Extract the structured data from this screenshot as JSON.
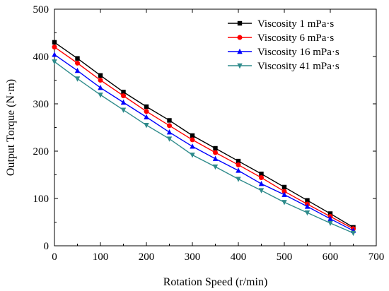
{
  "chart_data": {
    "type": "line",
    "xlabel": "Rotation Speed (r/min)",
    "ylabel": "Output Torque (N·m)",
    "xlim": [
      0,
      700
    ],
    "ylim": [
      0,
      500
    ],
    "xticks": [
      0,
      100,
      200,
      300,
      400,
      500,
      600,
      700
    ],
    "yticks": [
      0,
      100,
      200,
      300,
      400,
      500
    ],
    "grid": false,
    "legend_position": "top-right",
    "x": [
      0,
      50,
      100,
      150,
      200,
      250,
      300,
      350,
      400,
      450,
      500,
      550,
      600,
      650
    ],
    "series": [
      {
        "name": "Viscosity 1 mPa·s",
        "color": "#000000",
        "marker": "square",
        "values": [
          430,
          396,
          360,
          325,
          294,
          265,
          233,
          206,
          179,
          152,
          124,
          96,
          68,
          39
        ]
      },
      {
        "name": "Viscosity 6 mPa·s",
        "color": "#ff0000",
        "marker": "circle",
        "values": [
          420,
          386,
          350,
          317,
          284,
          254,
          224,
          197,
          171,
          144,
          115,
          88,
          62,
          36
        ]
      },
      {
        "name": "Viscosity 16 mPa·s",
        "color": "#0000ff",
        "marker": "triangle-up",
        "values": [
          404,
          370,
          334,
          303,
          272,
          240,
          210,
          184,
          159,
          131,
          108,
          83,
          57,
          32
        ]
      },
      {
        "name": "Viscosity 41 mPa·s",
        "color": "#2e8b8b",
        "marker": "triangle-down",
        "values": [
          389,
          353,
          319,
          287,
          255,
          226,
          192,
          167,
          141,
          117,
          92,
          70,
          48,
          27
        ]
      }
    ]
  }
}
